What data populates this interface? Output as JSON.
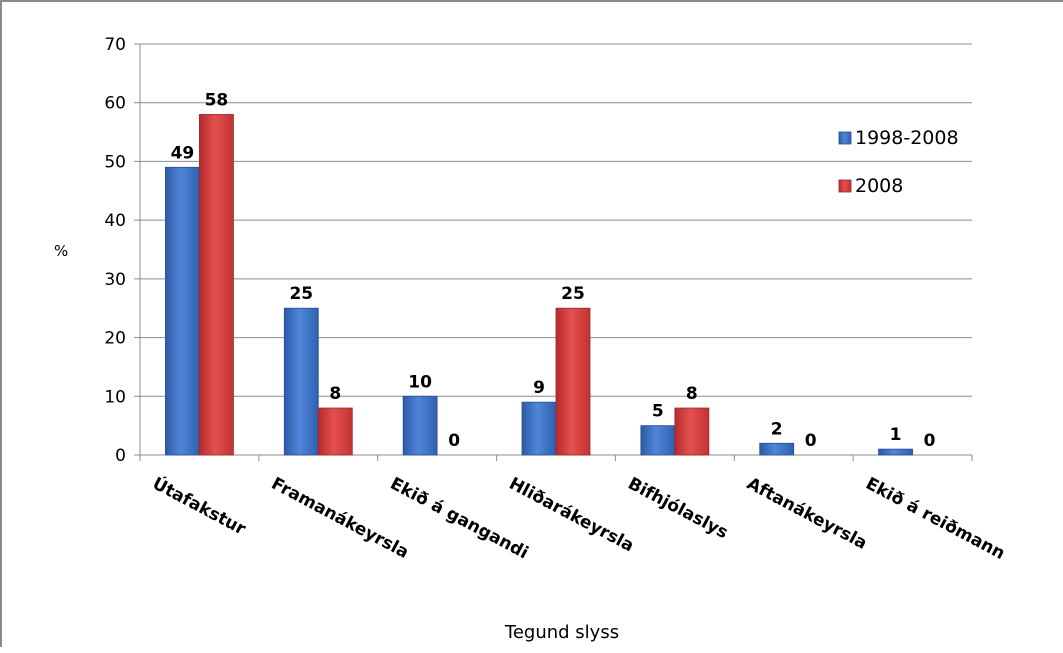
{
  "chart_data": {
    "type": "bar",
    "title": "",
    "xlabel": "Tegund slyss",
    "ylabel": "%",
    "ylim": [
      0,
      70
    ],
    "yticks": [
      0,
      10,
      20,
      30,
      40,
      50,
      60,
      70
    ],
    "grid": true,
    "legend_position": "right",
    "categories": [
      "Útafakstur",
      "Framanákeyrsla",
      "Ekið á gangandi",
      "Hliðarákeyrsla",
      "Bifhjólaslys",
      "Aftanákeyrsla",
      "Ekið á reiðmann"
    ],
    "series": [
      {
        "name": "1998-2008",
        "color": "#3f74c8",
        "values": [
          49,
          25,
          10,
          9,
          5,
          2,
          1
        ],
        "labels": [
          "49",
          "25",
          "10",
          "9",
          "5",
          "2",
          "1"
        ]
      },
      {
        "name": "2008",
        "color": "#d63b3b",
        "values": [
          58,
          8,
          0,
          25,
          8,
          0,
          0
        ],
        "labels": [
          "58",
          "8",
          "0",
          "25",
          "8",
          "0",
          "0"
        ]
      }
    ]
  }
}
